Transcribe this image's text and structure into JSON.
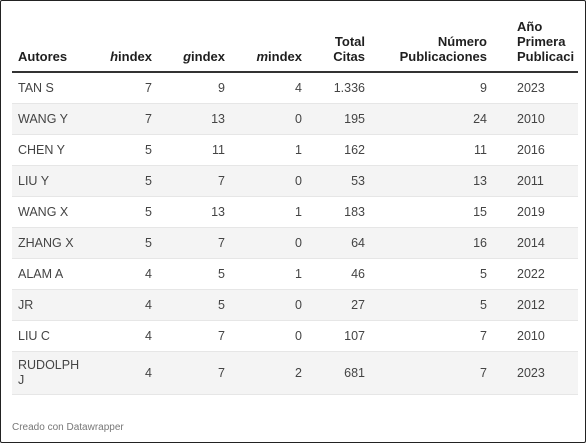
{
  "table": {
    "headers": {
      "autores": "Autores",
      "h_prefix": "h",
      "h_word": "index",
      "g_prefix": "g",
      "g_word": "index",
      "m_prefix": "m",
      "m_word": "index",
      "citas_1": "Total",
      "citas_2": "Citas",
      "pubs_1": "Número",
      "pubs_2": "Publicaciones",
      "anio_1": "Año",
      "anio_2": "Primera",
      "anio_3": "Publicaci"
    },
    "rows": [
      {
        "autor": "TAN S",
        "h": "7",
        "g": "9",
        "m": "4",
        "citas": "1.336",
        "pubs": "9",
        "anio": "2023"
      },
      {
        "autor": "WANG Y",
        "h": "7",
        "g": "13",
        "m": "0",
        "citas": "195",
        "pubs": "24",
        "anio": "2010"
      },
      {
        "autor": "CHEN Y",
        "h": "5",
        "g": "11",
        "m": "1",
        "citas": "162",
        "pubs": "11",
        "anio": "2016"
      },
      {
        "autor": "LIU Y",
        "h": "5",
        "g": "7",
        "m": "0",
        "citas": "53",
        "pubs": "13",
        "anio": "2011"
      },
      {
        "autor": "WANG X",
        "h": "5",
        "g": "13",
        "m": "1",
        "citas": "183",
        "pubs": "15",
        "anio": "2019"
      },
      {
        "autor": "ZHANG X",
        "h": "5",
        "g": "7",
        "m": "0",
        "citas": "64",
        "pubs": "16",
        "anio": "2014"
      },
      {
        "autor": "ALAM A",
        "h": "4",
        "g": "5",
        "m": "1",
        "citas": "46",
        "pubs": "5",
        "anio": "2022"
      },
      {
        "autor": "JR",
        "h": "4",
        "g": "5",
        "m": "0",
        "citas": "27",
        "pubs": "5",
        "anio": "2012"
      },
      {
        "autor": "LIU C",
        "h": "4",
        "g": "7",
        "m": "0",
        "citas": "107",
        "pubs": "7",
        "anio": "2010"
      },
      {
        "autor_1": "RUDOLPH",
        "autor_2": "J",
        "h": "4",
        "g": "7",
        "m": "2",
        "citas": "681",
        "pubs": "7",
        "anio": "2023"
      }
    ]
  },
  "footer": {
    "credit": "Creado con Datawrapper"
  }
}
